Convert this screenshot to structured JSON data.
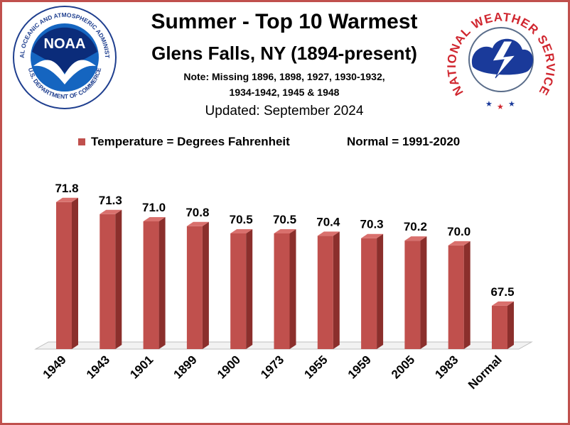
{
  "title": "Summer - Top 10 Warmest",
  "subtitle": "Glens Falls, NY (1894-present)",
  "note_line1": "Note: Missing 1896, 1898, 1927, 1930-1932,",
  "note_line2": "1934-1942, 1945 & 1948",
  "updated": "Updated: September 2024",
  "legend": {
    "series_label": "Temperature = Degrees Fahrenheit",
    "normal_label": "Normal = 1991-2020"
  },
  "logos": {
    "noaa_text": "NOAA",
    "noaa_ring": "NATIONAL OCEANIC AND ATMOSPHERIC ADMINISTRATION",
    "noaa_ring_bottom": "U.S. DEPARTMENT OF COMMERCE",
    "nws_ring": "NATIONAL WEATHER SERVICE"
  },
  "colors": {
    "bar": "#c0504d",
    "bar_dark": "#8b2f2c",
    "bar_top": "#d9706d",
    "frame": "#c0504d"
  },
  "chart_data": {
    "type": "bar",
    "categories": [
      "1949",
      "1943",
      "1901",
      "1899",
      "1900",
      "1973",
      "1955",
      "1959",
      "2005",
      "1983",
      "Normal"
    ],
    "values": [
      71.8,
      71.3,
      71.0,
      70.8,
      70.5,
      70.5,
      70.4,
      70.3,
      70.2,
      70.0,
      67.5
    ],
    "value_labels": [
      "71.8",
      "71.3",
      "71.0",
      "70.8",
      "70.5",
      "70.5",
      "70.4",
      "70.3",
      "70.2",
      "70.0",
      "67.5"
    ],
    "ylim": [
      65.7,
      72.0
    ],
    "grid": false,
    "legend_position": "top"
  }
}
